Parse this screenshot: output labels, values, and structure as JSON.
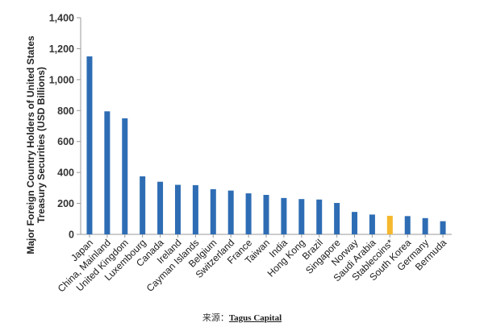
{
  "chart_data": {
    "type": "bar",
    "title": "",
    "ylabel": "Major Foreign Country Holders of United States Treasury Securities  (USD Billions)",
    "xlabel": "",
    "ylim": [
      0,
      1400
    ],
    "yticks": [
      0,
      200,
      400,
      600,
      800,
      "1,000",
      "1,200",
      "1,400"
    ],
    "ytick_values": [
      0,
      200,
      400,
      600,
      800,
      1000,
      1200,
      1400
    ],
    "grid": false,
    "categories": [
      "Japan",
      "China, Mainland",
      "United Kingdom",
      "Luxembourg",
      "Canada",
      "Ireland",
      "Cayman Islands",
      "Belgium",
      "Switzerland",
      "France",
      "Taiwan",
      "India",
      "Hong Kong",
      "Brazil",
      "Singapore",
      "Norway",
      "Saudi Arabia",
      "Stablecoins*",
      "South Korea",
      "Germany",
      "Bermuda"
    ],
    "values": [
      1150,
      795,
      750,
      375,
      340,
      320,
      318,
      292,
      283,
      265,
      255,
      235,
      228,
      225,
      203,
      145,
      128,
      120,
      118,
      105,
      85
    ],
    "colors": {
      "default": "#2e6db4",
      "highlight": "#f5b82e",
      "highlight_category": "Stablecoins*"
    }
  },
  "source": {
    "prefix": "来源：",
    "link_text": "Tagus Capital"
  }
}
